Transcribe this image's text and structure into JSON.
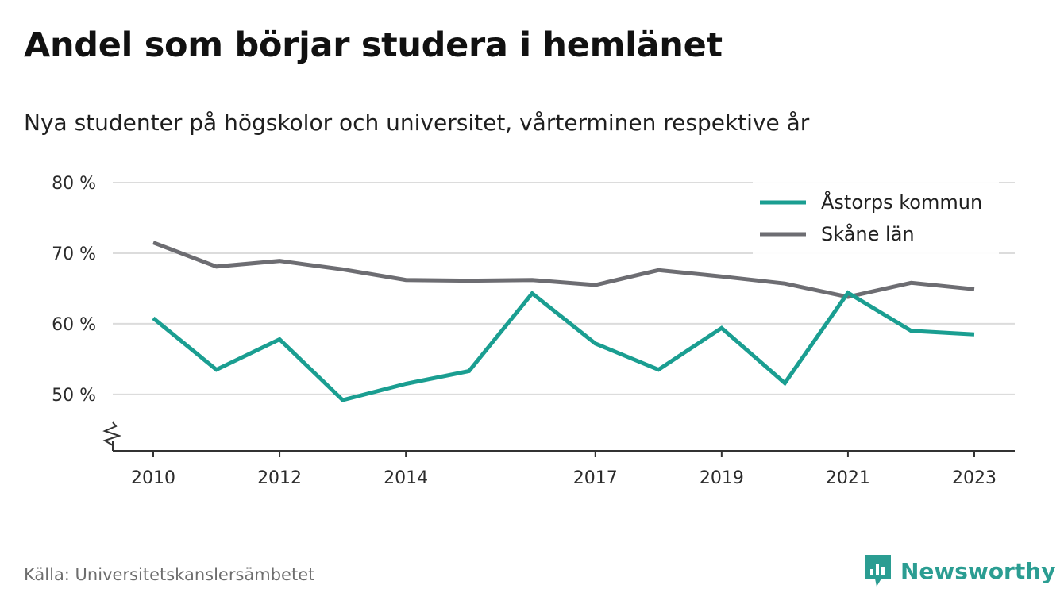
{
  "chart_data": {
    "type": "line",
    "title": "Andel som börjar studera i hemlänet",
    "subtitle": "Nya studenter på högskolor och universitet, vårterminen respektive år",
    "x": [
      2010,
      2011,
      2012,
      2013,
      2014,
      2015,
      2016,
      2017,
      2018,
      2019,
      2020,
      2021,
      2022,
      2023
    ],
    "xticks": [
      2010,
      2012,
      2014,
      2017,
      2019,
      2021,
      2023
    ],
    "yticks": [
      50,
      60,
      70,
      80
    ],
    "ytick_suffix": " %",
    "ylim": [
      42,
      80
    ],
    "axis_break": true,
    "grid": true,
    "legend_position": "top-right",
    "series": [
      {
        "name": "Åstorps kommun",
        "color": "#1a9e91",
        "values": [
          60.8,
          53.5,
          57.8,
          49.2,
          51.5,
          53.3,
          64.3,
          57.2,
          53.5,
          59.4,
          51.6,
          64.4,
          59.0,
          58.5
        ]
      },
      {
        "name": "Skåne län",
        "color": "#6d6d72",
        "values": [
          71.5,
          68.1,
          68.9,
          67.7,
          66.2,
          66.1,
          66.2,
          65.5,
          67.6,
          66.7,
          65.7,
          63.8,
          65.8,
          64.9
        ]
      }
    ]
  },
  "source": "Källa: Universitetskanslersämbetet",
  "brand": {
    "name": "Newsworthy",
    "color": "#2b9d92"
  }
}
